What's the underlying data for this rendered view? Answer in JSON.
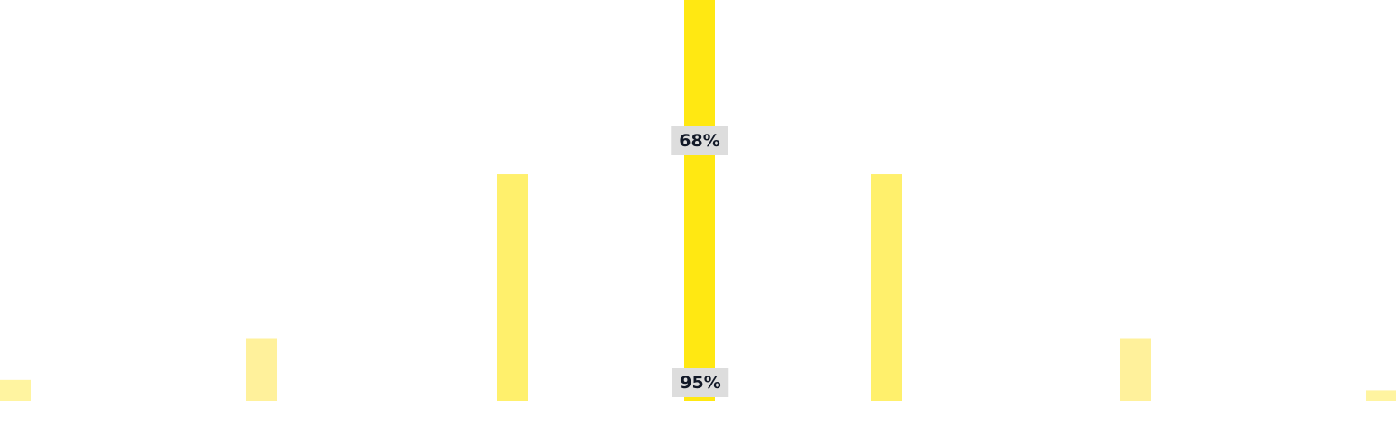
{
  "chart_data": {
    "type": "bar",
    "values": [
      6,
      18,
      65,
      115,
      65,
      18,
      3
    ],
    "bar_colors": [
      "#fff4a0",
      "#fff19b",
      "#fff06c",
      "#ffe812",
      "#fff06c",
      "#fff19b",
      "#fff4a0"
    ],
    "ylim": [
      0,
      115
    ],
    "grid": false,
    "legend": "none",
    "annotations": [
      {
        "text": "68%",
        "target_bar": 3
      },
      {
        "text": "95%",
        "target_bar": 3
      }
    ]
  },
  "colors": {
    "background": "#ffffff",
    "label_background": "#dddddd",
    "label_text": "#111827"
  }
}
